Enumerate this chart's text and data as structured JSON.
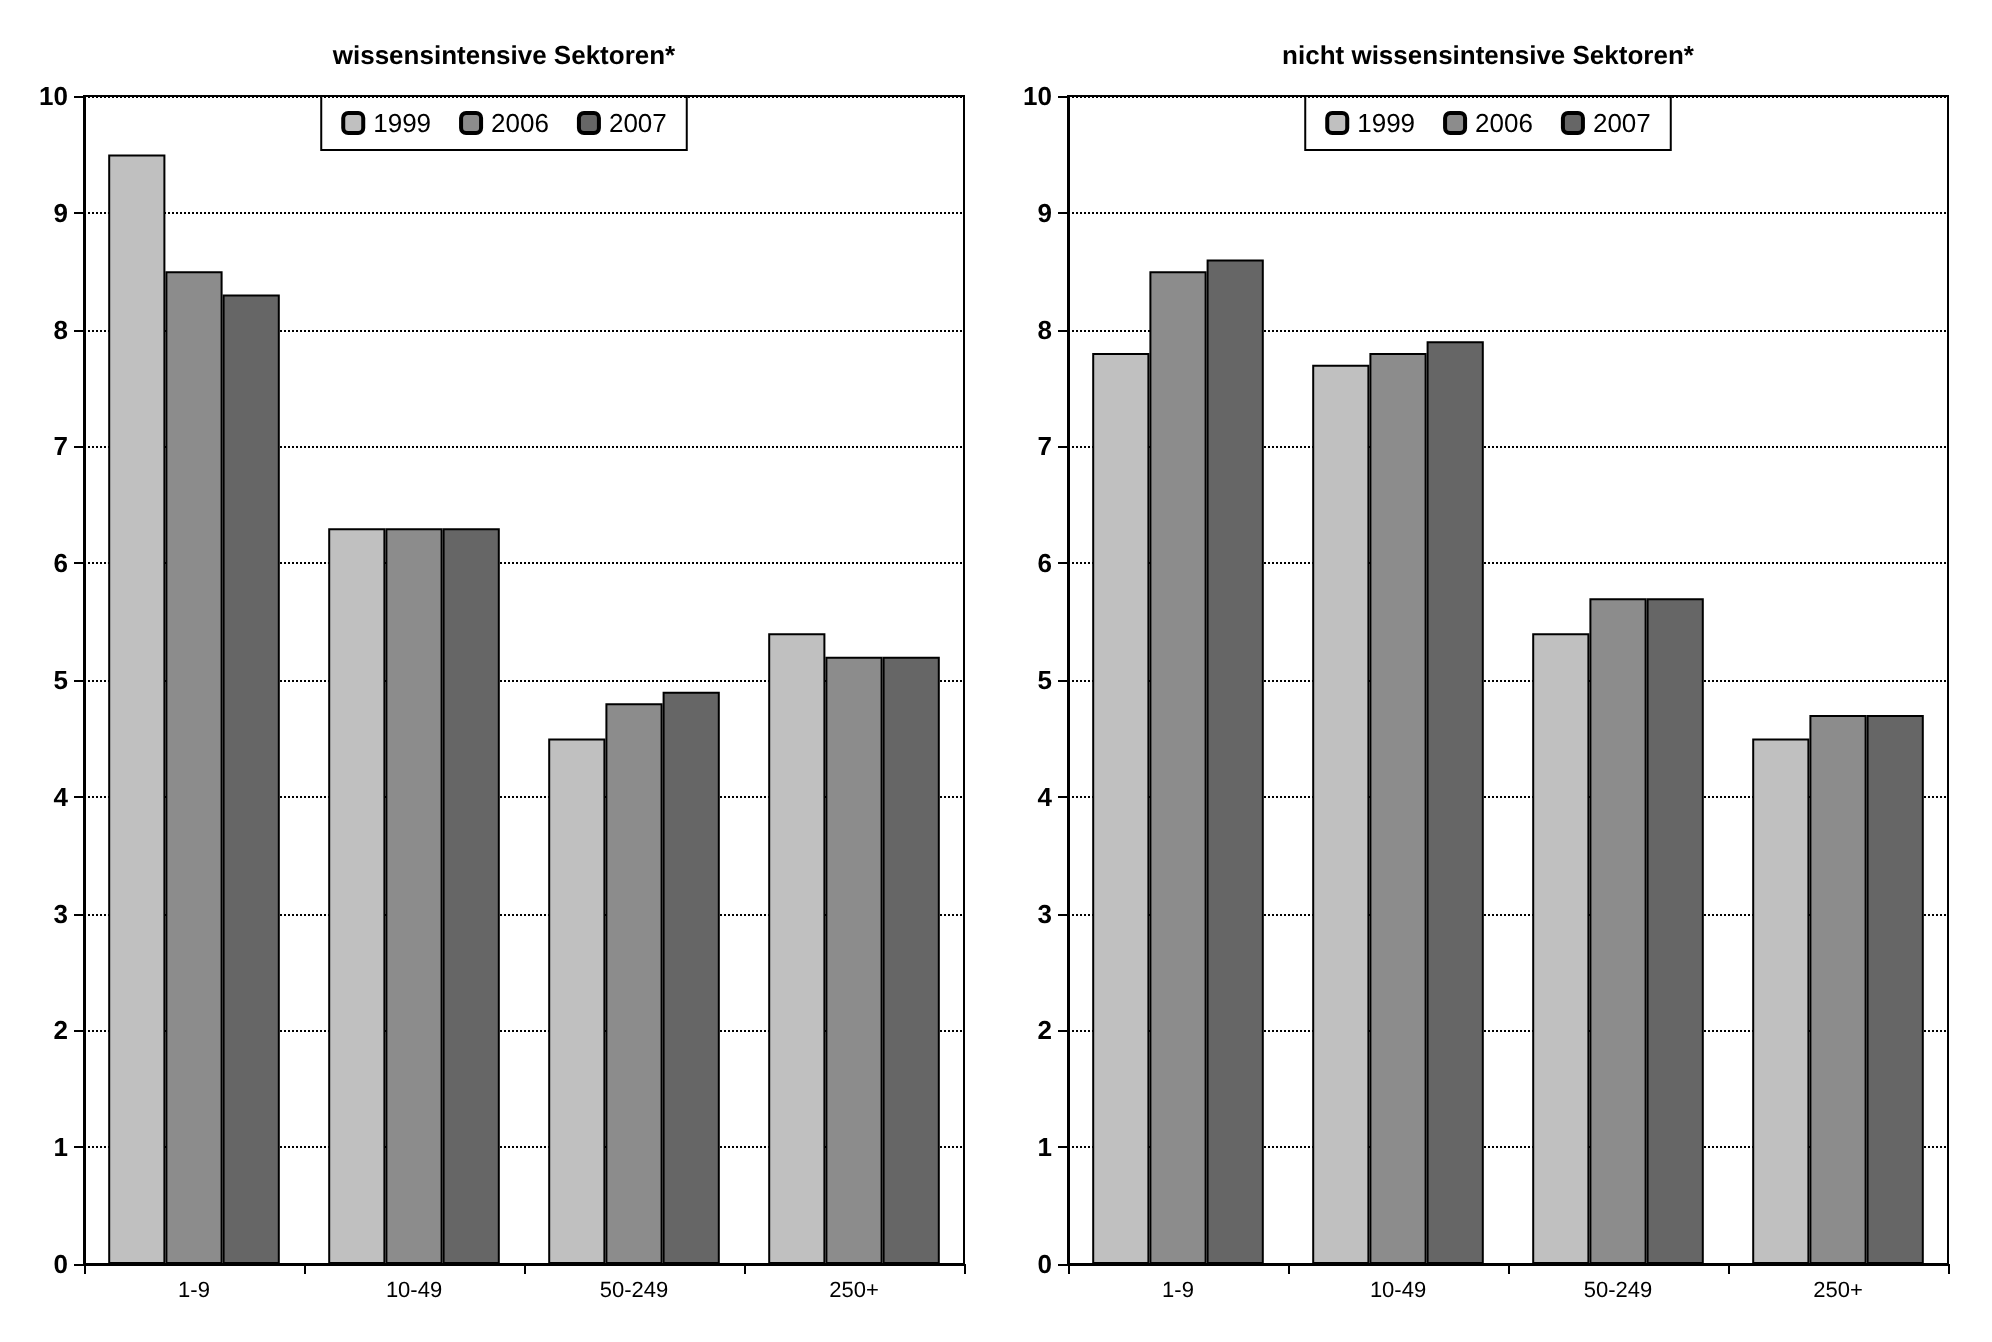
{
  "chart_data": [
    {
      "type": "bar",
      "title": "wissensintensive Sektoren*",
      "categories": [
        "1-9",
        "10-49",
        "50-249",
        "250+"
      ],
      "series": [
        {
          "name": "1999",
          "color": "#c0c0c0",
          "values": [
            9.5,
            6.3,
            4.5,
            5.4
          ]
        },
        {
          "name": "2006",
          "color": "#8c8c8c",
          "values": [
            8.5,
            6.3,
            4.8,
            5.2
          ]
        },
        {
          "name": "2007",
          "color": "#666666",
          "values": [
            8.3,
            6.3,
            4.9,
            5.2
          ]
        }
      ],
      "ylim": [
        0,
        10
      ],
      "yticks": [
        0,
        1,
        2,
        3,
        4,
        5,
        6,
        7,
        8,
        9,
        10
      ],
      "grid": "y",
      "legend": "top"
    },
    {
      "type": "bar",
      "title": "nicht wissensintensive Sektoren*",
      "categories": [
        "1-9",
        "10-49",
        "50-249",
        "250+"
      ],
      "series": [
        {
          "name": "1999",
          "color": "#c0c0c0",
          "values": [
            7.8,
            7.7,
            5.4,
            4.5
          ]
        },
        {
          "name": "2006",
          "color": "#8c8c8c",
          "values": [
            8.5,
            7.8,
            5.7,
            4.7
          ]
        },
        {
          "name": "2007",
          "color": "#666666",
          "values": [
            8.6,
            7.9,
            5.7,
            4.7
          ]
        }
      ],
      "ylim": [
        0,
        10
      ],
      "yticks": [
        0,
        1,
        2,
        3,
        4,
        5,
        6,
        7,
        8,
        9,
        10
      ],
      "grid": "y",
      "legend": "top"
    }
  ]
}
